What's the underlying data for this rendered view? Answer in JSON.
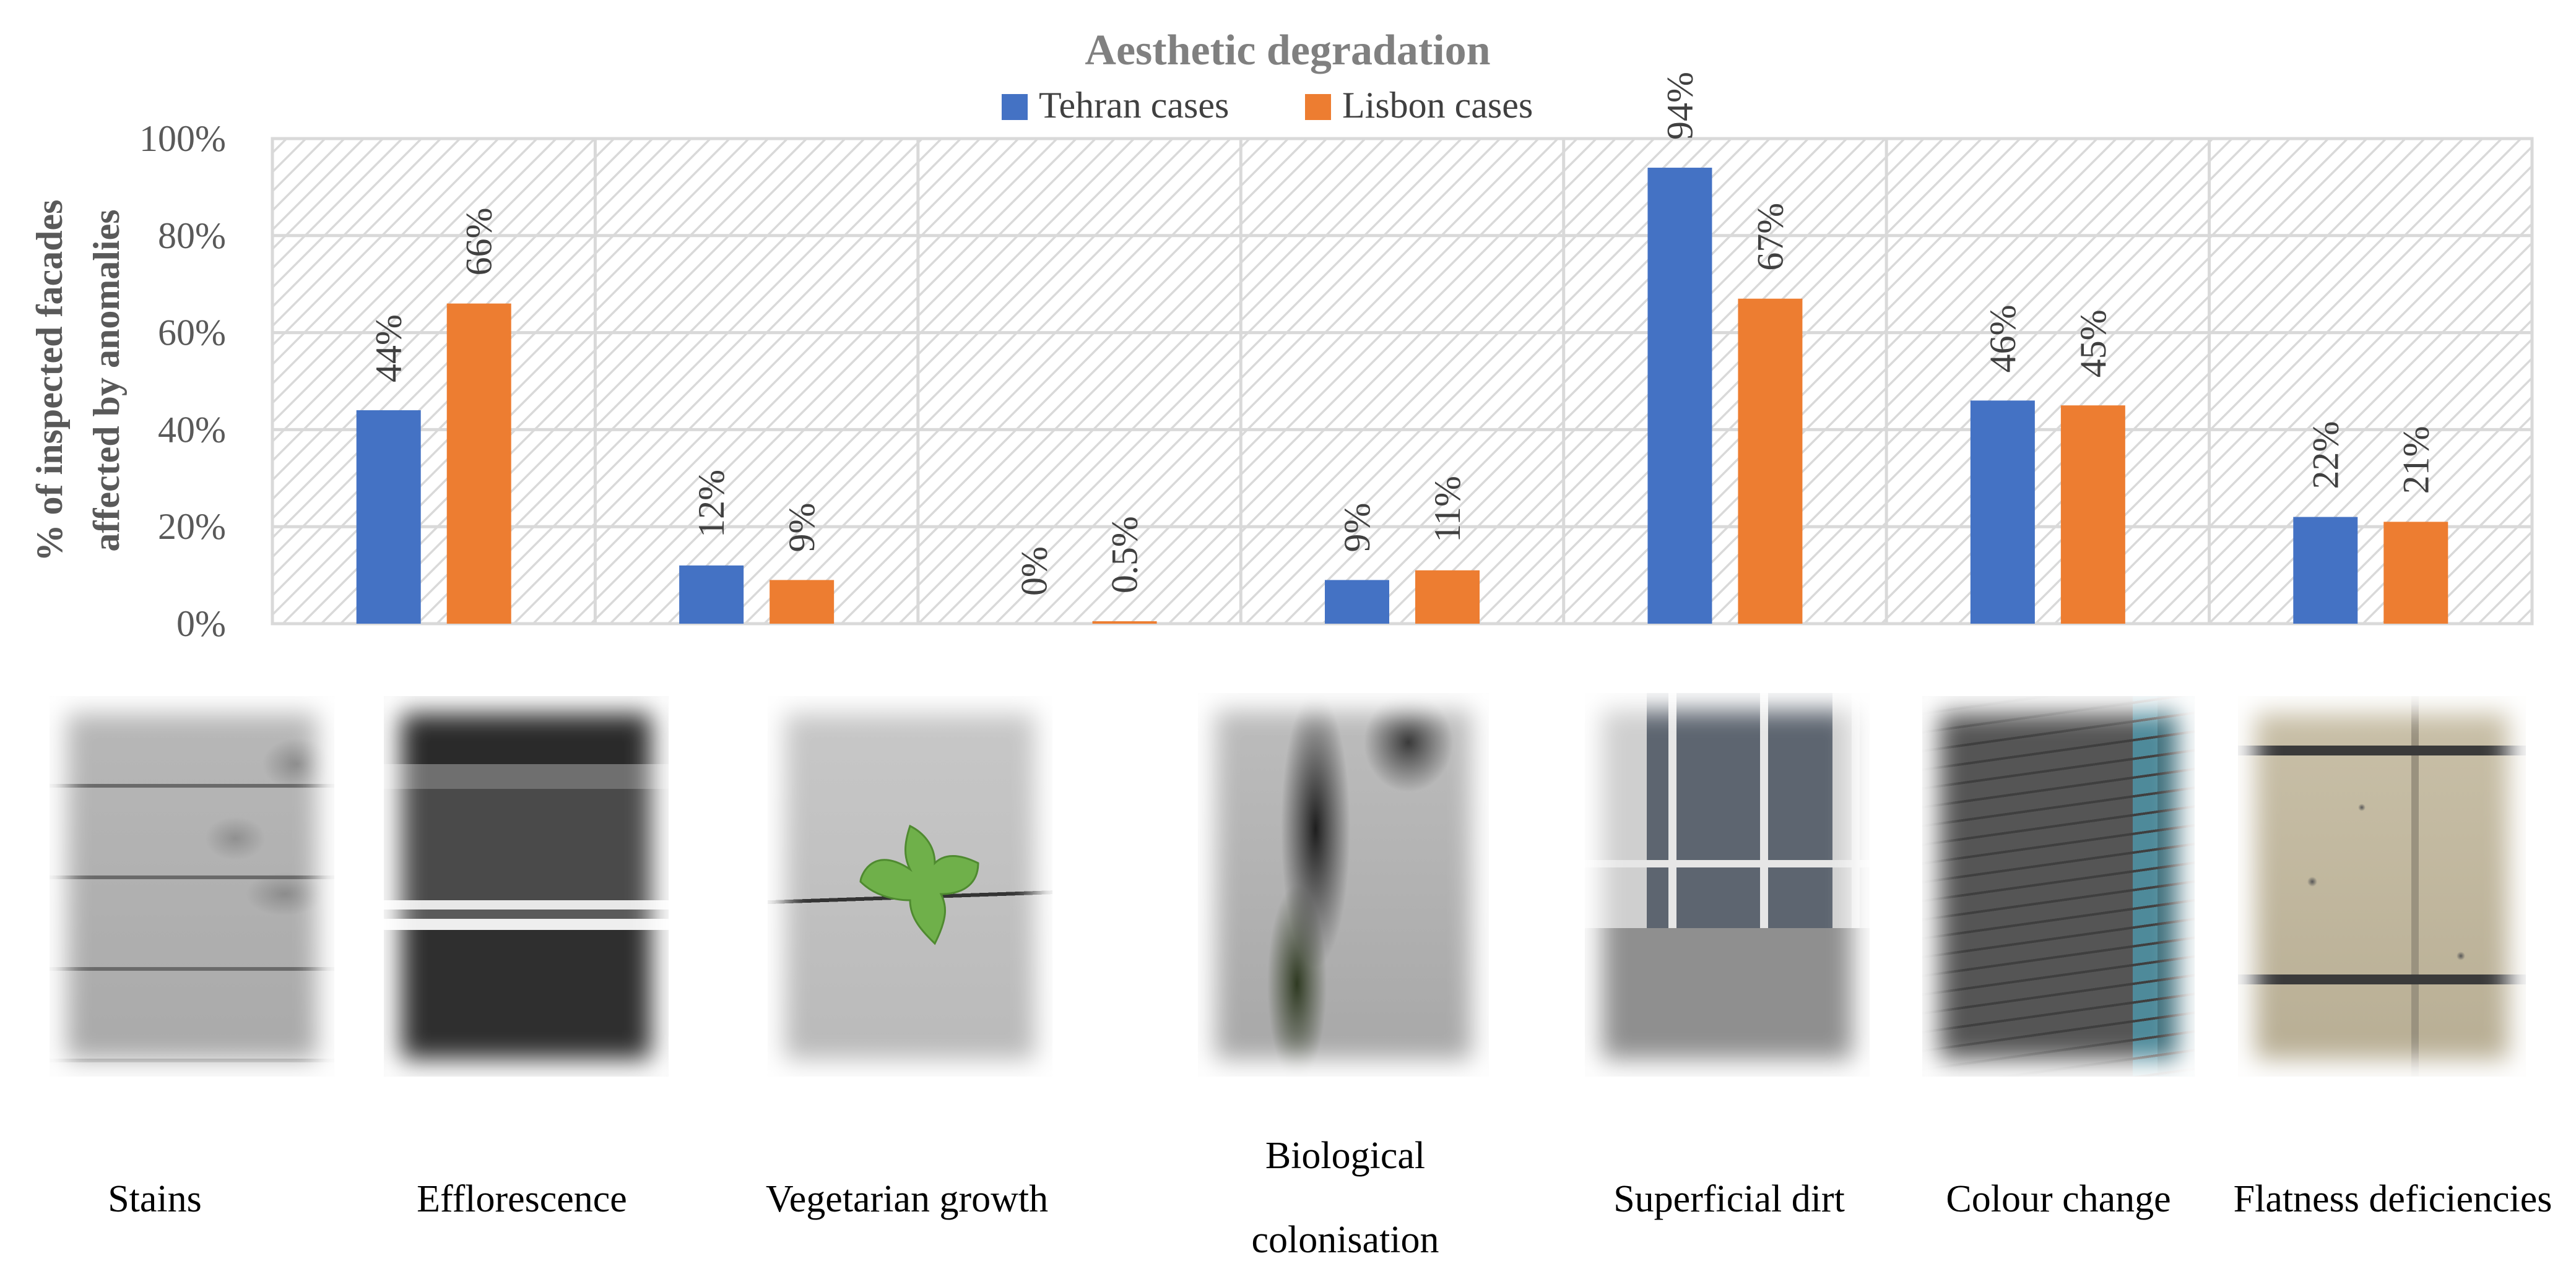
{
  "chart_data": {
    "type": "bar",
    "title": "Aesthetic degradation",
    "ylabel": "% of inspected facades affected by anomalies",
    "ylabel_lines": [
      "% of inspected facades",
      "affected by anomalies"
    ],
    "xlabel": "",
    "ylim": [
      0,
      100
    ],
    "yticks": [
      0,
      20,
      40,
      60,
      80,
      100
    ],
    "ytick_labels": [
      "0%",
      "20%",
      "40%",
      "60%",
      "80%",
      "100%"
    ],
    "grid": true,
    "legend": "top-center",
    "categories": [
      "Stains",
      "Efflorescence",
      "Vegetarian growth",
      "Biological colonisation",
      "Superficial dirt",
      "Colour change",
      "Flatness deficiencies"
    ],
    "category_lines": [
      [
        "Stains"
      ],
      [
        "Efflorescence"
      ],
      [
        "Vegetarian growth"
      ],
      [
        "Biological",
        "colonisation"
      ],
      [
        "Superficial dirt"
      ],
      [
        "Colour change"
      ],
      [
        "Flatness deficiencies"
      ]
    ],
    "series": [
      {
        "name": "Tehran cases",
        "color": "#4472C4",
        "values": [
          44,
          12,
          0,
          9,
          94,
          46,
          22
        ],
        "labels": [
          "44%",
          "12%",
          "0%",
          "9%",
          "94%",
          "46%",
          "22%"
        ]
      },
      {
        "name": "Lisbon cases",
        "color": "#ED7D31",
        "values": [
          66,
          9,
          0.5,
          11,
          67,
          45,
          21
        ],
        "labels": [
          "66%",
          "9%",
          "0.5%",
          "11%",
          "67%",
          "45%",
          "21%"
        ]
      }
    ]
  },
  "photos": [
    {
      "name": "stains-photo",
      "icon": "stone-wall-stains"
    },
    {
      "name": "efflorescence-photo",
      "icon": "dark-stone-efflorescence"
    },
    {
      "name": "vegetarian-growth-photo",
      "icon": "leaf-in-crack"
    },
    {
      "name": "biological-colonisation-photo",
      "icon": "dark-moss-streak"
    },
    {
      "name": "superficial-dirt-photo",
      "icon": "window-dirty-facade"
    },
    {
      "name": "colour-change-photo",
      "icon": "brick-wall-colour"
    },
    {
      "name": "flatness-deficiencies-photo",
      "icon": "porous-stone-slab"
    }
  ]
}
